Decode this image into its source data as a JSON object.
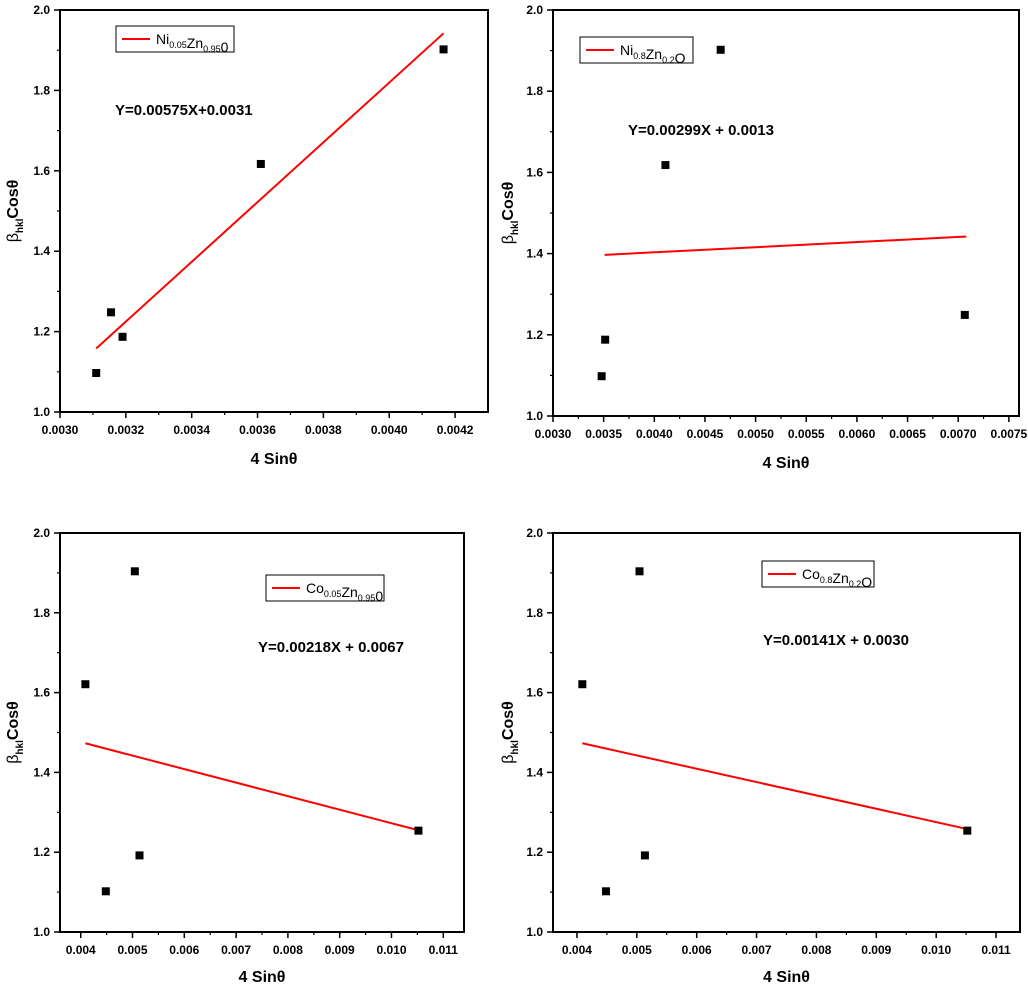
{
  "colors": {
    "fit_line": "#ff0000",
    "points": "#000000",
    "axes": "#000000"
  },
  "chart_data": [
    {
      "type": "scatter",
      "x": [
        0.00311,
        0.003155,
        0.00319,
        0.00361,
        0.004165
      ],
      "y": [
        1.097,
        1.248,
        1.187,
        1.617,
        1.902
      ],
      "fit_line": {
        "x": [
          0.00311,
          0.004165
        ],
        "y": [
          1.158,
          1.942
        ]
      },
      "xlim": [
        0.003,
        0.0043
      ],
      "ylim": [
        1.0,
        2.0
      ],
      "xticks": [
        0.003,
        0.0032,
        0.0034,
        0.0036,
        0.0038,
        0.004,
        0.0042
      ],
      "xtick_labels": [
        "0.0030",
        "0.0032",
        "0.0034",
        "0.0036",
        "0.0038",
        "0.0040",
        "0.0042"
      ],
      "yticks": [
        1.0,
        1.2,
        1.4,
        1.6,
        1.8,
        2.0
      ],
      "ytick_labels": [
        "1.0",
        "1.2",
        "1.4",
        "1.6",
        "1.8",
        "2.0"
      ],
      "xlabel": "4 Sinθ",
      "ylabel": {
        "beta": "β",
        "sub": "hkl",
        "rest": "Cosθ"
      },
      "equation": "Y=0.00575X+0.0031",
      "legend": {
        "parts": [
          [
            "Ni",
            ""
          ],
          [
            "0.05",
            "sub"
          ],
          [
            "Zn",
            ""
          ],
          [
            "0.95",
            "sub"
          ],
          [
            "0",
            ""
          ]
        ]
      }
    },
    {
      "type": "scatter",
      "x": [
        0.00348,
        0.003515,
        0.00411,
        0.004655,
        0.007065
      ],
      "y": [
        1.098,
        1.188,
        1.618,
        1.902,
        1.249
      ],
      "fit_line": {
        "x": [
          0.00351,
          0.00708
        ],
        "y": [
          1.397,
          1.442
        ]
      },
      "xlim": [
        0.003,
        0.0076
      ],
      "ylim": [
        1.0,
        2.0
      ],
      "xticks": [
        0.003,
        0.0035,
        0.004,
        0.0045,
        0.005,
        0.0055,
        0.006,
        0.0065,
        0.007,
        0.0075
      ],
      "xtick_labels": [
        "0.0030",
        "0.0035",
        "0.0040",
        "0.0045",
        "0.0050",
        "0.0055",
        "0.0060",
        "0.0065",
        "0.0070",
        "0.0075"
      ],
      "yticks": [
        1.0,
        1.2,
        1.4,
        1.6,
        1.8,
        2.0
      ],
      "ytick_labels": [
        "1.0",
        "1.2",
        "1.4",
        "1.6",
        "1.8",
        "2.0"
      ],
      "xlabel": "4 Sinθ",
      "ylabel": {
        "beta": "β",
        "sub": "hkl",
        "rest": "Cosθ"
      },
      "equation": "Y=0.00299X + 0.0013",
      "legend": {
        "parts": [
          [
            "Ni",
            ""
          ],
          [
            "0.8",
            "sub"
          ],
          [
            "Zn",
            ""
          ],
          [
            "0.2",
            "sub"
          ],
          [
            "O",
            ""
          ]
        ]
      }
    },
    {
      "type": "scatter",
      "x": [
        0.00409,
        0.004485,
        0.005045,
        0.005135,
        0.01052
      ],
      "y": [
        1.621,
        1.102,
        1.904,
        1.192,
        1.254
      ],
      "fit_line": {
        "x": [
          0.00409,
          0.01052
        ],
        "y": [
          1.473,
          1.255
        ]
      },
      "xlim": [
        0.0036,
        0.0114
      ],
      "ylim": [
        1.0,
        2.0
      ],
      "xticks": [
        0.004,
        0.005,
        0.006,
        0.007,
        0.008,
        0.009,
        0.01,
        0.011
      ],
      "xtick_labels": [
        "0.004",
        "0.005",
        "0.006",
        "0.007",
        "0.008",
        "0.009",
        "0.010",
        "0.011"
      ],
      "yticks": [
        1.0,
        1.2,
        1.4,
        1.6,
        1.8,
        2.0
      ],
      "ytick_labels": [
        "1.0",
        "1.2",
        "1.4",
        "1.6",
        "1.8",
        "2.0"
      ],
      "xlabel": "4 Sinθ",
      "ylabel": {
        "beta": "β",
        "sub": "hkl",
        "rest": "Cosθ"
      },
      "equation": "Y=0.00218X + 0.0067",
      "legend": {
        "parts": [
          [
            "Co",
            ""
          ],
          [
            "0.05",
            "sub"
          ],
          [
            "Zn",
            ""
          ],
          [
            "0.95",
            "sub"
          ],
          [
            "0",
            ""
          ]
        ]
      }
    },
    {
      "type": "scatter",
      "x": [
        0.00409,
        0.004485,
        0.005045,
        0.005135,
        0.01052
      ],
      "y": [
        1.621,
        1.102,
        1.904,
        1.192,
        1.254
      ],
      "fit_line": {
        "x": [
          0.00409,
          0.01052
        ],
        "y": [
          1.473,
          1.258
        ]
      },
      "xlim": [
        0.0036,
        0.0114
      ],
      "ylim": [
        1.0,
        2.0
      ],
      "xticks": [
        0.004,
        0.005,
        0.006,
        0.007,
        0.008,
        0.009,
        0.01,
        0.011
      ],
      "xtick_labels": [
        "0.004",
        "0.005",
        "0.006",
        "0.007",
        "0.008",
        "0.009",
        "0.010",
        "0.011"
      ],
      "yticks": [
        1.0,
        1.2,
        1.4,
        1.6,
        1.8,
        2.0
      ],
      "ytick_labels": [
        "1.0",
        "1.2",
        "1.4",
        "1.6",
        "1.8",
        "2.0"
      ],
      "xlabel": "4 Sinθ",
      "ylabel": {
        "beta": "β",
        "sub": "hkl",
        "rest": "Cosθ"
      },
      "equation": "Y=0.00141X + 0.0030",
      "legend": {
        "parts": [
          [
            "Co",
            ""
          ],
          [
            "0.8",
            "sub"
          ],
          [
            "Zn",
            ""
          ],
          [
            "0.2",
            "sub"
          ],
          [
            "O",
            ""
          ]
        ]
      }
    }
  ]
}
